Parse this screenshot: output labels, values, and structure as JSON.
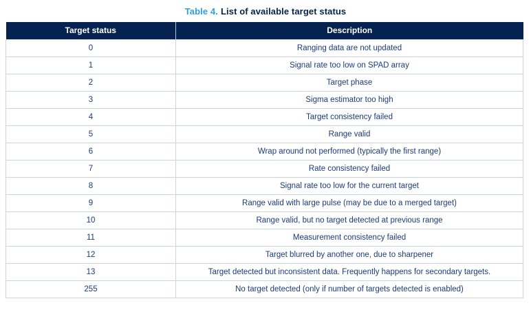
{
  "caption": {
    "label": "Table 4.",
    "title": "List of available target status"
  },
  "table": {
    "columns": [
      "Target status",
      "Description"
    ],
    "rows": [
      [
        "0",
        "Ranging data are not updated"
      ],
      [
        "1",
        "Signal rate too low on SPAD array"
      ],
      [
        "2",
        "Target phase"
      ],
      [
        "3",
        "Sigma estimator too high"
      ],
      [
        "4",
        "Target consistency failed"
      ],
      [
        "5",
        "Range valid"
      ],
      [
        "6",
        "Wrap around not performed (typically the first range)"
      ],
      [
        "7",
        "Rate consistency failed"
      ],
      [
        "8",
        "Signal rate too low for the current target"
      ],
      [
        "9",
        "Range valid with large pulse (may be due to a merged target)"
      ],
      [
        "10",
        "Range valid, but no target detected at previous range"
      ],
      [
        "11",
        "Measurement consistency failed"
      ],
      [
        "12",
        "Target blurred by another one, due to sharpener"
      ],
      [
        "13",
        "Target detected but inconsistent data. Frequently happens for secondary targets."
      ],
      [
        "255",
        "No target detected (only if number of targets detected is enabled)"
      ]
    ]
  },
  "colors": {
    "header_bg": "#052251",
    "header_text": "#ffffff",
    "caption_accent": "#2DA0DC",
    "caption_text": "#03234B",
    "body_text": "#1B3A7D",
    "border": "#ccd5dc"
  }
}
